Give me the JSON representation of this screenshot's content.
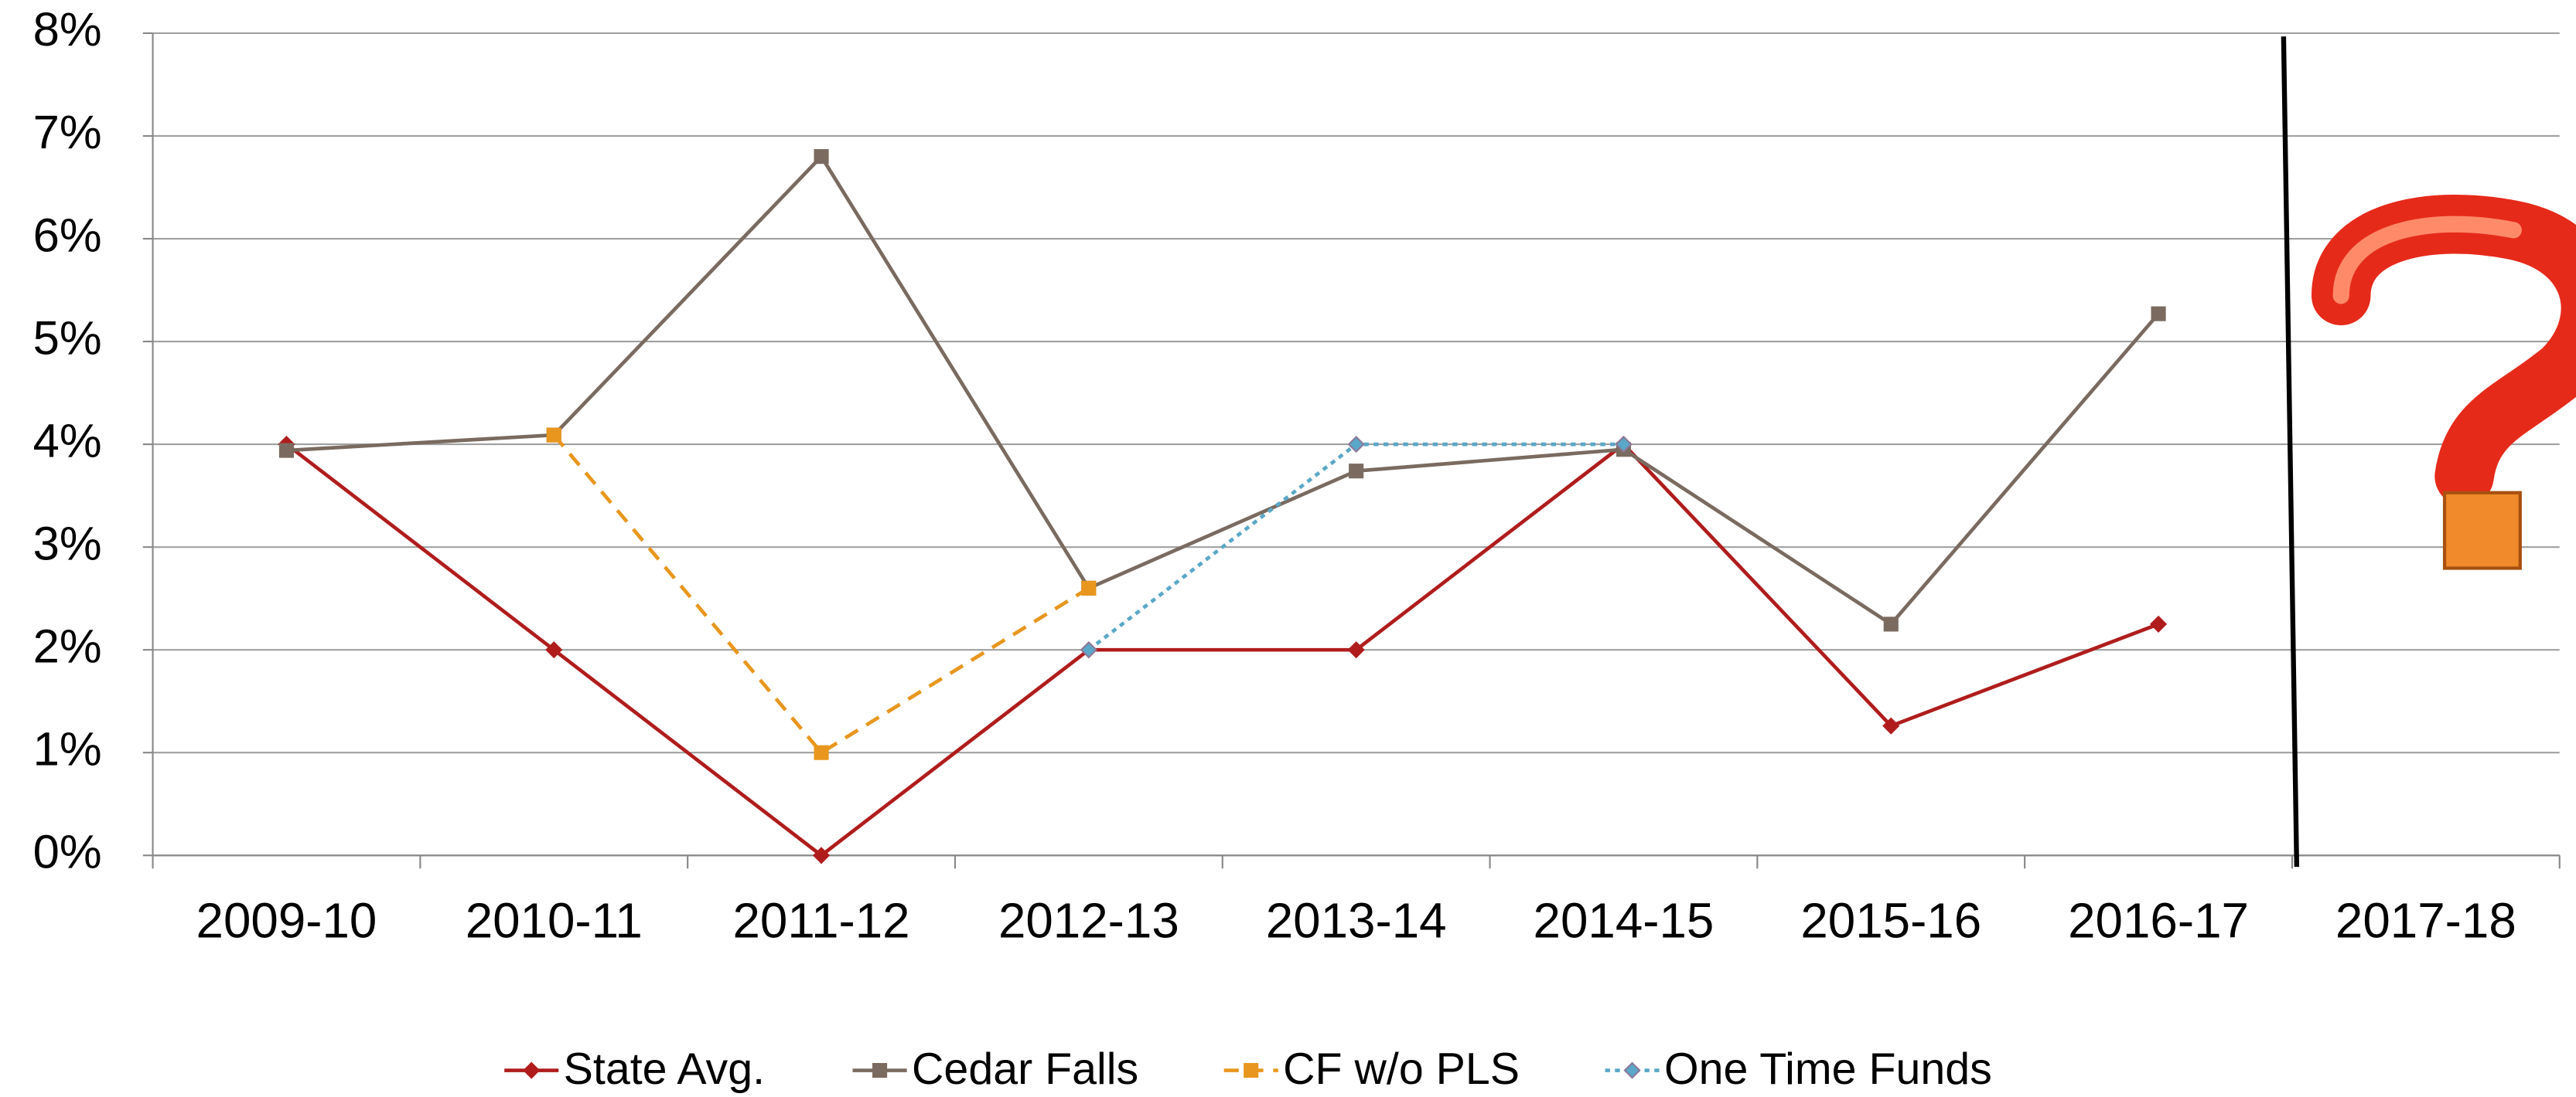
{
  "chart_data": {
    "type": "line",
    "categories": [
      "2009-10",
      "2010-11",
      "2011-12",
      "2012-13",
      "2013-14",
      "2014-15",
      "2015-16",
      "2016-17",
      "2017-18"
    ],
    "series": [
      {
        "name": "State Avg.",
        "color": "#b01c1c",
        "dash": "solid",
        "marker": "diamond",
        "values": [
          4,
          2,
          0,
          2,
          2,
          4,
          1.26,
          2.25,
          null
        ]
      },
      {
        "name": "Cedar Falls",
        "color": "#7a6a5f",
        "dash": "solid",
        "marker": "square",
        "values": [
          3.94,
          4.09,
          6.8,
          2.6,
          3.74,
          3.95,
          2.25,
          5.27,
          null
        ]
      },
      {
        "name": "CF w/o PLS",
        "color": "#e8961e",
        "dash": "dashed",
        "marker": "square",
        "values": [
          null,
          4.09,
          1.0,
          2.6,
          null,
          null,
          null,
          null,
          null
        ]
      },
      {
        "name": "One Time Funds",
        "color": "#5aa7c8",
        "dash": "dotted",
        "marker": "diamond",
        "values": [
          null,
          null,
          null,
          2,
          4,
          4,
          null,
          null,
          null
        ]
      }
    ],
    "ylim": [
      0,
      8
    ],
    "yticks": [
      {
        "value": 0,
        "label": "0%"
      },
      {
        "value": 1,
        "label": "1%"
      },
      {
        "value": 2,
        "label": "2%"
      },
      {
        "value": 3,
        "label": "3%"
      },
      {
        "value": 4,
        "label": "4%"
      },
      {
        "value": 5,
        "label": "5%"
      },
      {
        "value": 6,
        "label": "6%"
      },
      {
        "value": 7,
        "label": "7%"
      },
      {
        "value": 8,
        "label": "8%"
      }
    ],
    "grid": true,
    "legend": "bottom"
  }
}
